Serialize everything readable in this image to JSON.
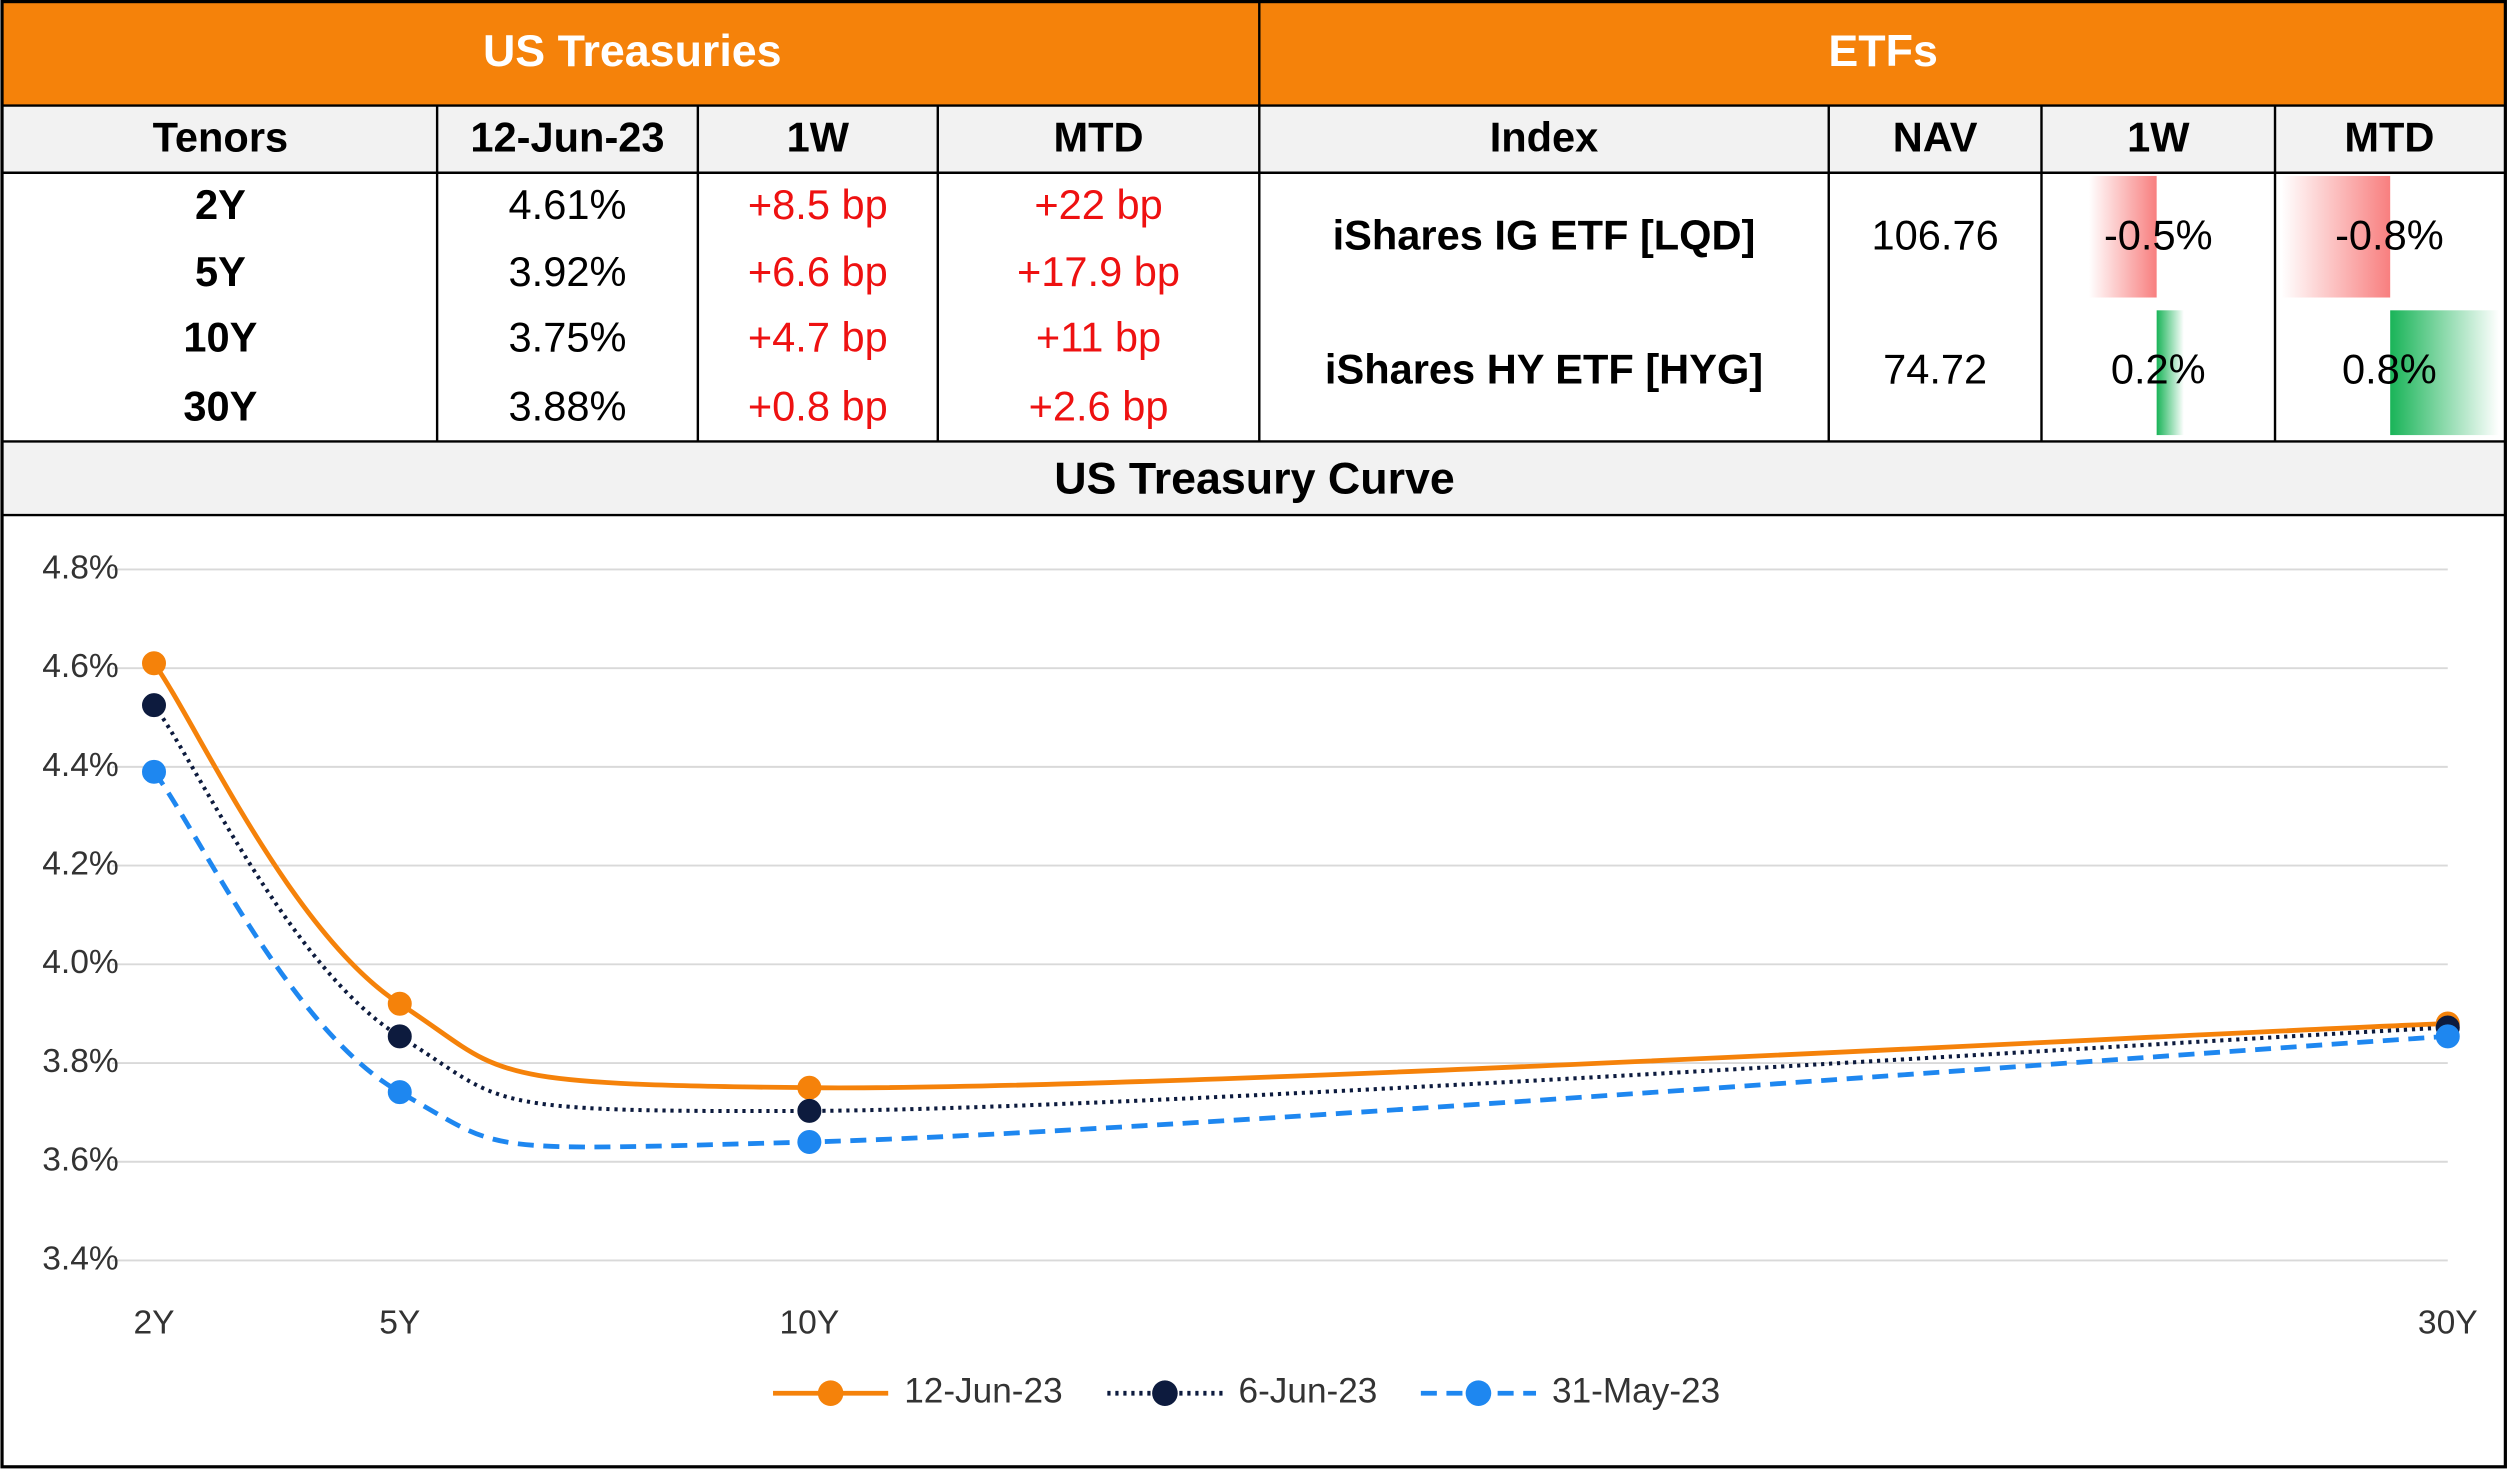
{
  "treasuries": {
    "title": "US Treasuries",
    "header": [
      "Tenors",
      "12-Jun-23",
      "1W",
      "MTD"
    ],
    "rows": [
      [
        "2Y",
        "4.61%",
        "+8.5 bp",
        "+22 bp"
      ],
      [
        "5Y",
        "3.92%",
        "+6.6 bp",
        "+17.9 bp"
      ],
      [
        "10Y",
        "3.75%",
        "+4.7 bp",
        "+11 bp"
      ],
      [
        "30Y",
        "3.88%",
        "+0.8 bp",
        "+2.6 bp"
      ]
    ]
  },
  "etfs": {
    "title": "ETFs",
    "header": [
      "Index",
      "NAV",
      "1W",
      "MTD"
    ],
    "rows": [
      {
        "index": "iShares IG ETF [LQD]",
        "nav": "106.76",
        "1w": {
          "value": -0.5,
          "label": "-0.5%"
        },
        "mtd": {
          "value": -0.8,
          "label": "-0.8%"
        }
      },
      {
        "index": "iShares HY ETF [HYG]",
        "nav": "74.72",
        "1w": {
          "value": 0.2,
          "label": "0.2%"
        },
        "mtd": {
          "value": 0.8,
          "label": "0.8%"
        }
      }
    ]
  },
  "chart_data": {
    "type": "line",
    "title": "US Treasury Curve",
    "x": [
      2,
      5,
      10,
      30
    ],
    "xlim": [
      2,
      30
    ],
    "xticks": [
      {
        "value": 2,
        "label": "2Y"
      },
      {
        "value": 5,
        "label": "5Y"
      },
      {
        "value": 10,
        "label": "10Y"
      },
      {
        "value": 30,
        "label": "30Y"
      }
    ],
    "ylim": [
      3.4,
      4.8
    ],
    "yticks": [
      {
        "value": 3.4,
        "label": "3.4%"
      },
      {
        "value": 3.6,
        "label": "3.6%"
      },
      {
        "value": 3.8,
        "label": "3.8%"
      },
      {
        "value": 4.0,
        "label": "4.0%"
      },
      {
        "value": 4.2,
        "label": "4.2%"
      },
      {
        "value": 4.4,
        "label": "4.4%"
      },
      {
        "value": 4.6,
        "label": "4.6%"
      },
      {
        "value": 4.8,
        "label": "4.8%"
      }
    ],
    "grid": true,
    "smooth": true,
    "legend": "bottom",
    "series": [
      {
        "name": "12-Jun-23",
        "color": "#f5820a",
        "dash": "solid",
        "values": [
          4.61,
          3.92,
          3.75,
          3.88
        ]
      },
      {
        "name": "6-Jun-23",
        "color": "#0d1b3e",
        "dash": "dotted",
        "values": [
          4.525,
          3.854,
          3.703,
          3.872
        ]
      },
      {
        "name": "31-May-23",
        "color": "#1e87f0",
        "dash": "dashed",
        "values": [
          4.39,
          3.741,
          3.64,
          3.854
        ]
      }
    ]
  }
}
